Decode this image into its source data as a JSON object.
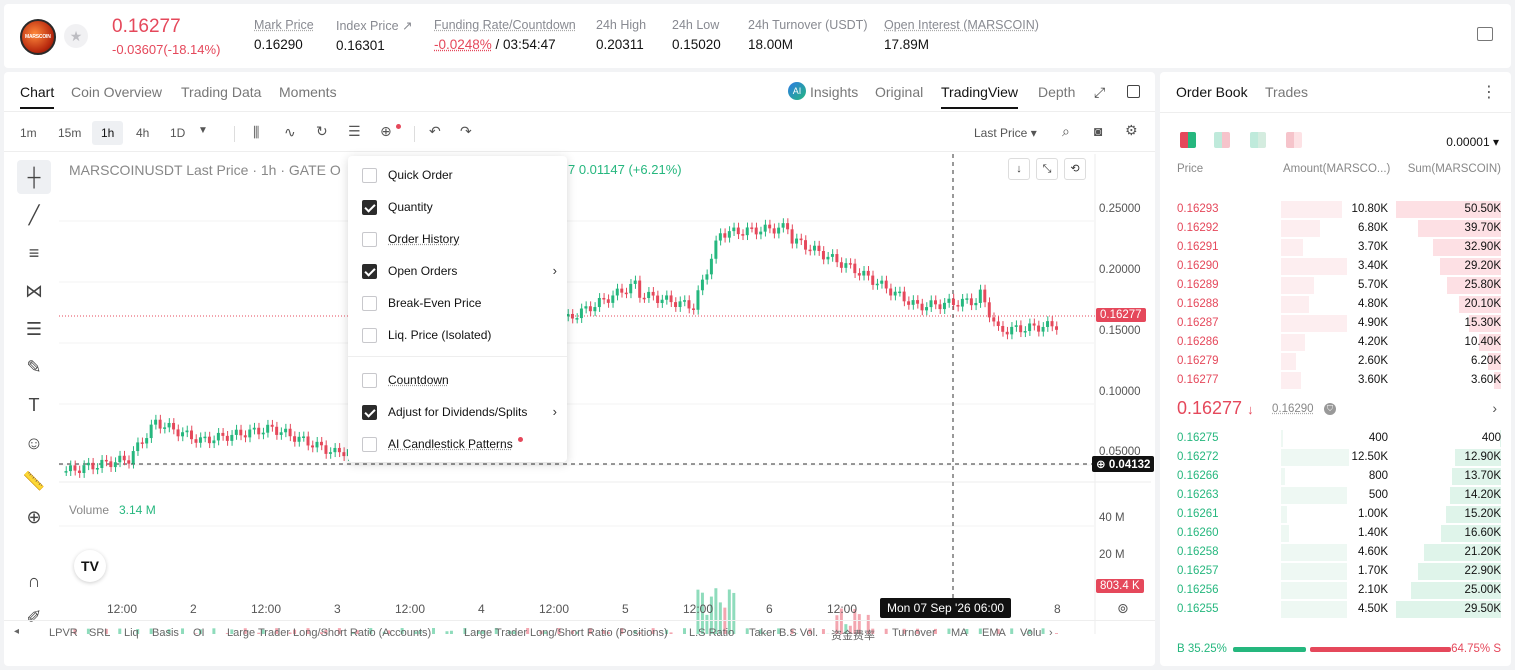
{
  "ticker": {
    "price": "0.16277",
    "change": "-0.03607(-18.14%)",
    "logo_text": "MARSCOIN"
  },
  "stats": [
    {
      "label": "Mark Price",
      "value": "0.16290"
    },
    {
      "label": "Index Price ↗",
      "value": "0.16301"
    },
    {
      "label": "Funding Rate/Countdown",
      "value_red": "-0.0248%",
      "value": " / 03:54:47"
    },
    {
      "label": "24h High",
      "value": "0.20311"
    },
    {
      "label": "24h Low",
      "value": "0.15020"
    },
    {
      "label": "24h Turnover (USDT)",
      "value": "18.00M"
    },
    {
      "label": "Open Interest (MARSCOIN)",
      "value": "17.89M"
    }
  ],
  "chart_tabs": [
    "Chart",
    "Coin Overview",
    "Trading Data",
    "Moments"
  ],
  "view_tabs": {
    "insights": "Insights",
    "original": "Original",
    "tradingview": "TradingView",
    "depth": "Depth"
  },
  "timeframes": [
    "1m",
    "15m",
    "1h",
    "4h",
    "1D"
  ],
  "price_type": "Last Price",
  "legend": {
    "symbol": "MARSCOINUSDT Last Price · 1h · GATE",
    "o": "O",
    "change": "7  0.01147 (+6.21%)"
  },
  "menu": {
    "items": [
      {
        "label": "Quick Order",
        "checked": false
      },
      {
        "label": "Quantity",
        "checked": true
      },
      {
        "label": "Order History",
        "checked": false
      },
      {
        "label": "Open Orders",
        "checked": true
      },
      {
        "label": "Break-Even Price",
        "checked": false
      },
      {
        "label": "Liq. Price (Isolated)",
        "checked": false
      },
      {
        "label": "Countdown",
        "checked": false
      },
      {
        "label": "Adjust for Dividends/Splits",
        "checked": true
      },
      {
        "label": "AI Candlestick Patterns",
        "checked": false
      }
    ]
  },
  "yaxis": [
    "0.25000",
    "0.20000",
    "0.15000",
    "0.10000",
    "0.05000"
  ],
  "current_price_tag": "0.16277",
  "crosshair_price_tag": "0.04132",
  "volume": {
    "label": "Volume",
    "value": "3.14 M",
    "axis": [
      "40 M",
      "20 M"
    ],
    "tag": "803.4 K"
  },
  "xaxis": [
    "12:00",
    "2",
    "12:00",
    "3",
    "12:00",
    "4",
    "12:00",
    "5",
    "12:00",
    "6",
    "12:00",
    "8"
  ],
  "crosshair_time": "Mon 07 Sep '26   06:00",
  "indicators": [
    "LPVR",
    "SRL",
    "Liq",
    "Basis",
    "OI",
    "Large Trader Long/Short Ratio (Accounts)",
    "Large Trader Long/Short Ratio (Positions)",
    "L.S Ratio",
    "Taker B.S Vol.",
    "资金费率",
    "Turnover",
    "MA",
    "EMA",
    "Volu"
  ],
  "orderbook": {
    "tabs": [
      "Order Book",
      "Trades"
    ],
    "precision": "0.00001",
    "headers": {
      "price": "Price",
      "amount": "Amount(MARSCO...)",
      "sum": "Sum(MARSCOIN)"
    },
    "asks": [
      {
        "p": "0.16293",
        "a": "10.80K",
        "s": "50.50K",
        "af": 0.55,
        "sf": 1.0
      },
      {
        "p": "0.16292",
        "a": "6.80K",
        "s": "39.70K",
        "af": 0.35,
        "sf": 0.79
      },
      {
        "p": "0.16291",
        "a": "3.70K",
        "s": "32.90K",
        "af": 0.2,
        "sf": 0.65
      },
      {
        "p": "0.16290",
        "a": "3.40K",
        "s": "29.20K",
        "af": 0.6,
        "sf": 0.58
      },
      {
        "p": "0.16289",
        "a": "5.70K",
        "s": "25.80K",
        "af": 0.3,
        "sf": 0.51
      },
      {
        "p": "0.16288",
        "a": "4.80K",
        "s": "20.10K",
        "af": 0.25,
        "sf": 0.4
      },
      {
        "p": "0.16287",
        "a": "4.90K",
        "s": "15.30K",
        "af": 0.6,
        "sf": 0.3
      },
      {
        "p": "0.16286",
        "a": "4.20K",
        "s": "10.40K",
        "af": 0.22,
        "sf": 0.21
      },
      {
        "p": "0.16279",
        "a": "2.60K",
        "s": "6.20K",
        "af": 0.14,
        "sf": 0.12
      },
      {
        "p": "0.16277",
        "a": "3.60K",
        "s": "3.60K",
        "af": 0.18,
        "sf": 0.07
      }
    ],
    "mid_price": "0.16277",
    "mark_price": "0.16290",
    "bids": [
      {
        "p": "0.16275",
        "a": "400",
        "s": "400",
        "af": 0.02,
        "sf": 0.01
      },
      {
        "p": "0.16272",
        "a": "12.50K",
        "s": "12.90K",
        "af": 0.62,
        "sf": 0.44
      },
      {
        "p": "0.16266",
        "a": "800",
        "s": "13.70K",
        "af": 0.04,
        "sf": 0.47
      },
      {
        "p": "0.16263",
        "a": "500",
        "s": "14.20K",
        "af": 0.6,
        "sf": 0.49
      },
      {
        "p": "0.16261",
        "a": "1.00K",
        "s": "15.20K",
        "af": 0.05,
        "sf": 0.52
      },
      {
        "p": "0.16260",
        "a": "1.40K",
        "s": "16.60K",
        "af": 0.07,
        "sf": 0.57
      },
      {
        "p": "0.16258",
        "a": "4.60K",
        "s": "21.20K",
        "af": 0.6,
        "sf": 0.73
      },
      {
        "p": "0.16257",
        "a": "1.70K",
        "s": "22.90K",
        "af": 0.6,
        "sf": 0.79
      },
      {
        "p": "0.16256",
        "a": "2.10K",
        "s": "25.00K",
        "af": 0.6,
        "sf": 0.86
      },
      {
        "p": "0.16255",
        "a": "4.50K",
        "s": "29.50K",
        "af": 0.6,
        "sf": 1.0
      }
    ],
    "buy_ratio": "B 35.25%",
    "sell_ratio": "64.75% S",
    "buy_fraction": 0.3525
  },
  "colors": {
    "up": "#25b77e",
    "down": "#e5485b"
  }
}
